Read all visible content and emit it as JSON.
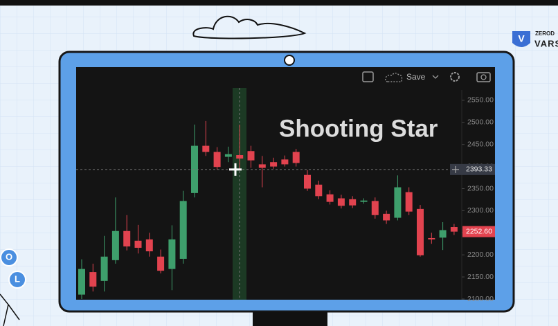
{
  "chart_data": {
    "type": "candlestick",
    "annotation": "Shooting Star",
    "toolbar_label": "Save",
    "open": [
      2110,
      2161,
      2141,
      2188,
      2254,
      2232,
      2235,
      2196,
      2168,
      2191,
      2340,
      2447,
      2433,
      2422,
      2426,
      2435,
      2405,
      2410,
      2416,
      2433,
      2381,
      2359,
      2337,
      2328,
      2326,
      2320,
      2322,
      2293,
      2284,
      2342,
      2304,
      2238,
      2239,
      2263
    ],
    "high": [
      2190,
      2180,
      2243,
      2330,
      2290,
      2268,
      2250,
      2212,
      2267,
      2345,
      2495,
      2503,
      2444,
      2445,
      2495,
      2447,
      2424,
      2420,
      2425,
      2440,
      2392,
      2368,
      2346,
      2336,
      2333,
      2328,
      2330,
      2300,
      2380,
      2353,
      2313,
      2250,
      2274,
      2270
    ],
    "low": [
      2100,
      2117,
      2117,
      2180,
      2210,
      2203,
      2196,
      2158,
      2120,
      2180,
      2330,
      2424,
      2393,
      2410,
      2393,
      2397,
      2353,
      2395,
      2400,
      2400,
      2345,
      2326,
      2314,
      2305,
      2306,
      2316,
      2282,
      2270,
      2278,
      2290,
      2196,
      2225,
      2211,
      2245
    ],
    "close": [
      2168,
      2128,
      2196,
      2254,
      2219,
      2216,
      2208,
      2164,
      2235,
      2322,
      2447,
      2433,
      2399,
      2428,
      2418,
      2414,
      2397,
      2400,
      2405,
      2408,
      2350,
      2333,
      2320,
      2311,
      2312,
      2323,
      2290,
      2278,
      2353,
      2298,
      2199,
      2235,
      2256,
      2252.6
    ],
    "up_color": "#3e9f6c",
    "down_color": "#e2434f",
    "ylim": [
      2100,
      2600
    ],
    "yticks": [
      {
        "value": 2100,
        "label": "2100.00"
      },
      {
        "value": 2150,
        "label": "2150.00"
      },
      {
        "value": 2200,
        "label": "2200.00"
      },
      {
        "value": 2250,
        "label": "2250.00"
      },
      {
        "value": 2300,
        "label": "2300.00"
      },
      {
        "value": 2350,
        "label": "2350.00"
      },
      {
        "value": 2400,
        "label": "2400.00"
      },
      {
        "value": 2450,
        "label": "2450.00"
      },
      {
        "value": 2500,
        "label": "2500.00"
      },
      {
        "value": 2550,
        "label": "2550.00"
      }
    ],
    "crosshair": {
      "value": 2393.33,
      "label": "2393.33"
    },
    "last_price": {
      "value": 2252.6,
      "label": "2252.60"
    },
    "grid": false
  },
  "logo": {
    "top": "ZEROD",
    "bottom": "VARS",
    "mark": "V"
  },
  "badges": [
    "O",
    "L"
  ]
}
